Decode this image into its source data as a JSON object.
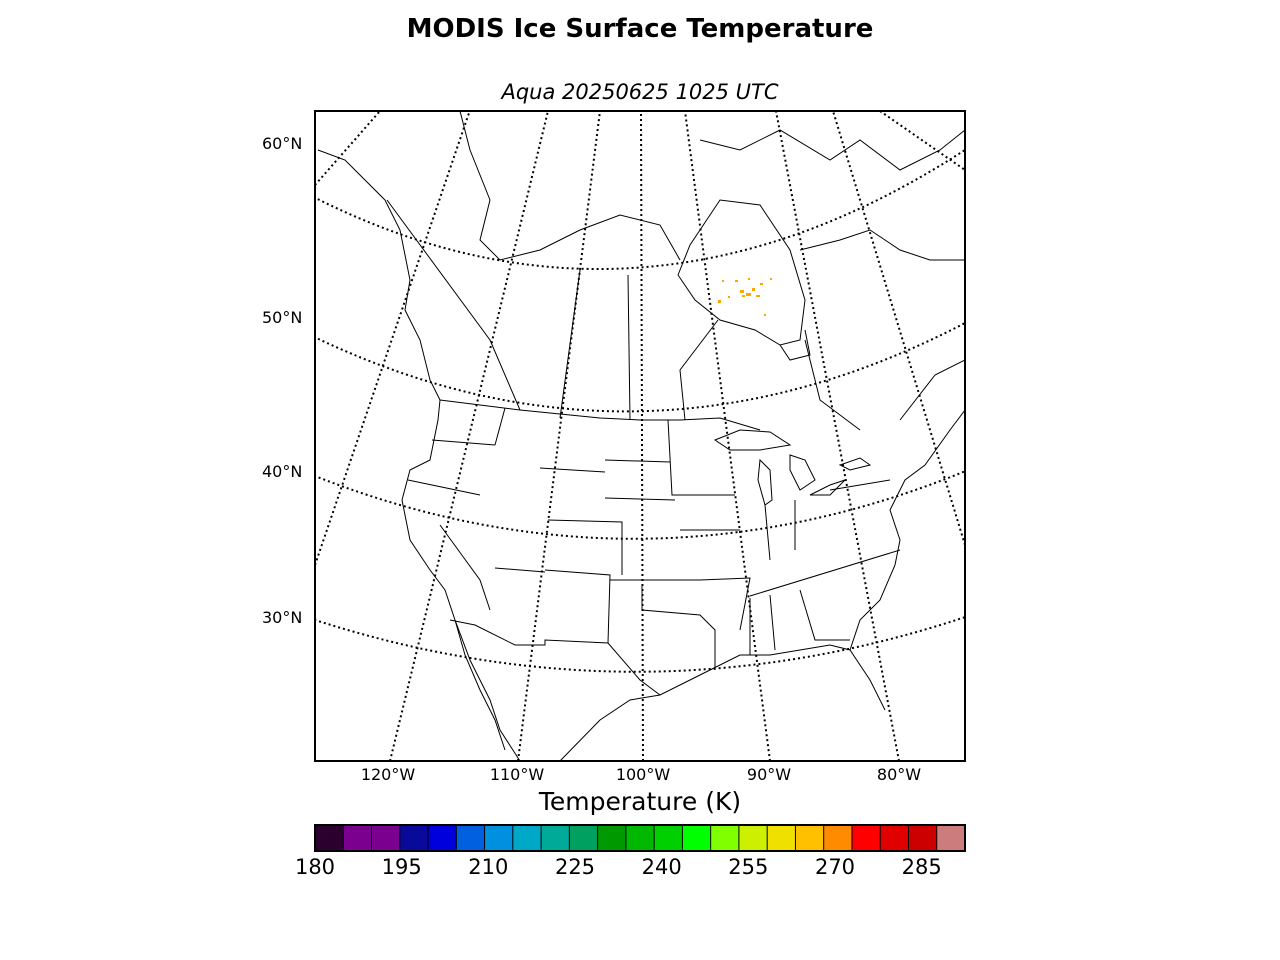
{
  "title": "MODIS Ice Surface Temperature",
  "subtitle": "Aqua 20250625 1025 UTC",
  "latitude_labels": [
    "60°N",
    "50°N",
    "40°N",
    "30°N"
  ],
  "longitude_labels": [
    "120°W",
    "110°W",
    "100°W",
    "90°W",
    "80°W"
  ],
  "colorbar": {
    "title": "Temperature (K)",
    "min": 180,
    "max": 292.5,
    "step": 5,
    "tick_labels": [
      "180",
      "195",
      "210",
      "225",
      "240",
      "255",
      "270",
      "285"
    ],
    "colors": [
      "#2b002f",
      "#7a0090",
      "#7a0090",
      "#0a0a9a",
      "#0000dd",
      "#0060e0",
      "#0090e0",
      "#00a8c8",
      "#00aa99",
      "#00a060",
      "#009a00",
      "#00b800",
      "#00d000",
      "#00ff00",
      "#80ff00",
      "#ccf000",
      "#f0e000",
      "#ffc000",
      "#ff8c00",
      "#ff0000",
      "#e00000",
      "#cc0000",
      "#cc7c7c"
    ]
  },
  "data_highlight": {
    "region": "Hudson Bay",
    "color": "#ffa500",
    "approx_temperature_K": 271
  }
}
